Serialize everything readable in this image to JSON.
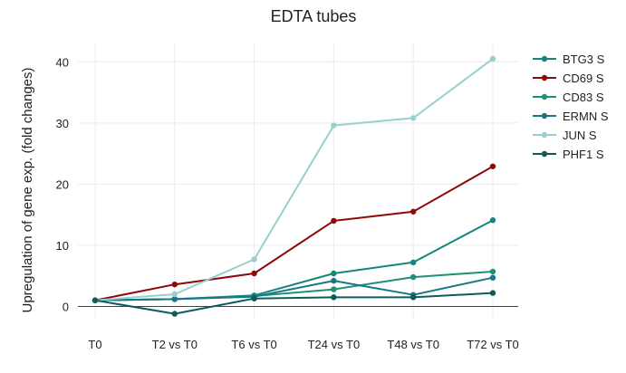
{
  "chart_data": {
    "type": "line",
    "title": "EDTA tubes",
    "xlabel": "",
    "ylabel": "Upregulation of gene exp. (fold changes)",
    "categories": [
      "T0",
      "T2 vs T0",
      "T6 vs T0",
      "T24 vs T0",
      "T48 vs T0",
      "T72 vs T0"
    ],
    "ylim": [
      -2,
      43
    ],
    "yticks": [
      0,
      10,
      20,
      30,
      40
    ],
    "grid": true,
    "legend_position": "right",
    "series": [
      {
        "name": "BTG3 S",
        "color": "#14857f",
        "values": [
          1,
          1.2,
          1.8,
          5.4,
          7.2,
          14.1
        ]
      },
      {
        "name": "CD69 S",
        "color": "#8b0a0a",
        "values": [
          1,
          3.6,
          5.4,
          14.0,
          15.5,
          22.9
        ]
      },
      {
        "name": "CD83 S",
        "color": "#1f9077",
        "values": [
          1,
          1.2,
          1.7,
          2.8,
          4.8,
          5.7
        ]
      },
      {
        "name": "ERMN S",
        "color": "#1a7685",
        "values": [
          1,
          1.2,
          1.6,
          4.2,
          1.9,
          4.7
        ]
      },
      {
        "name": "JUN S",
        "color": "#98cfcf",
        "values": [
          1,
          2.0,
          7.7,
          29.6,
          30.8,
          40.5
        ]
      },
      {
        "name": "PHF1 S",
        "color": "#0e5b5b",
        "values": [
          1,
          -1.2,
          1.3,
          1.5,
          1.5,
          2.2
        ]
      }
    ]
  }
}
